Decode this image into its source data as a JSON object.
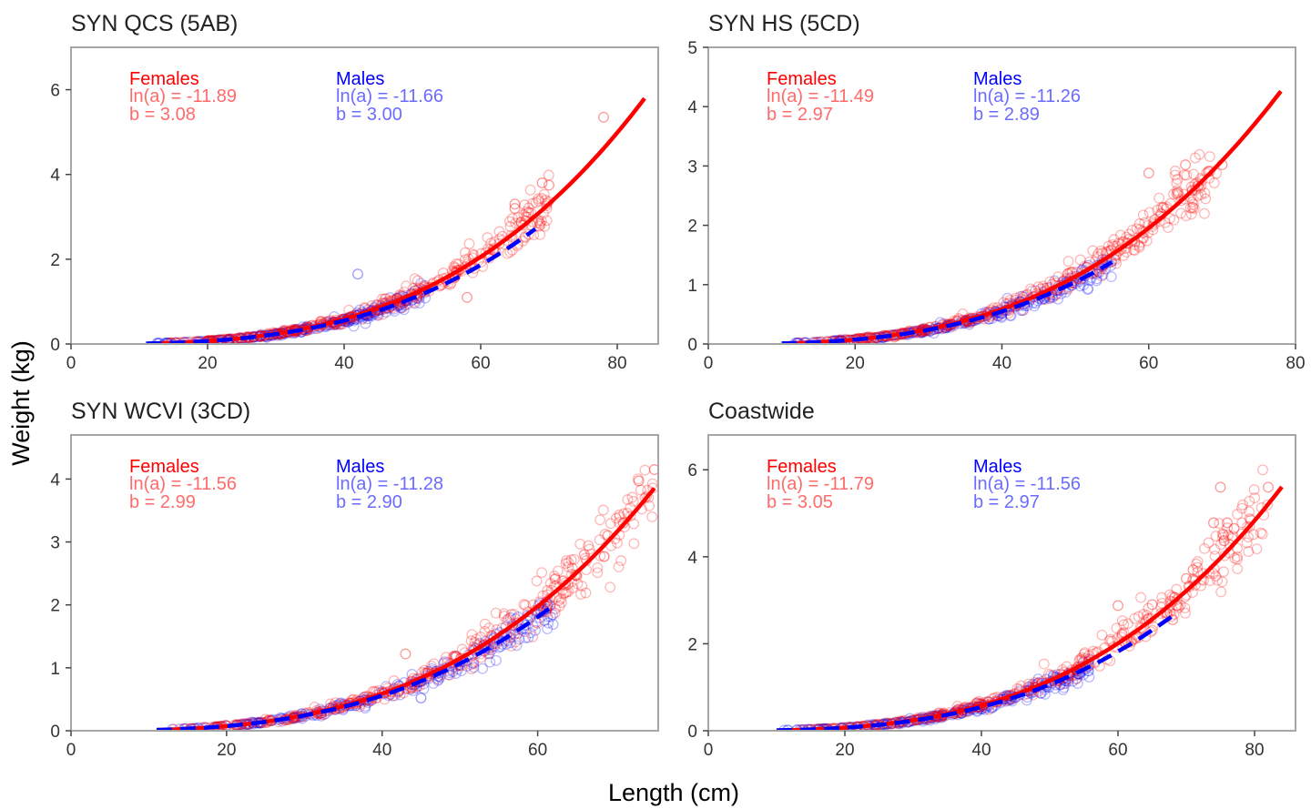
{
  "figure": {
    "ylabel": "Weight (kg)",
    "xlabel": "Length (cm)"
  },
  "colors": {
    "female": "#ff0000",
    "female_text": "#ff6b6b",
    "male": "#0000ff",
    "male_text": "#6b6bff",
    "frame": "#a6a6a6"
  },
  "chart_data": [
    {
      "type": "scatter",
      "title": "SYN QCS (5AB)",
      "xlim": [
        0,
        86
      ],
      "ylim": [
        0,
        7
      ],
      "x_ticks": [
        0,
        20,
        40,
        60,
        80
      ],
      "y_ticks": [
        0,
        2,
        4,
        6
      ],
      "series": [
        {
          "name": "Females",
          "ln_a": "ln(a) = -11.89",
          "b_label": "b = 3.08",
          "lna": -11.89,
          "b": 3.08,
          "x_range": [
            12,
            84
          ],
          "line_style": "solid",
          "scatter_x_range": [
            13,
            70
          ]
        },
        {
          "name": "Males",
          "ln_a": "ln(a) = -11.66",
          "b_label": "b = 3.00",
          "lna": -11.66,
          "b": 3.0,
          "x_range": [
            11,
            68
          ],
          "line_style": "dashed",
          "scatter_x_range": [
            12,
            52
          ]
        }
      ],
      "outliers": [
        {
          "sex": "female",
          "x": 78,
          "y": 5.35
        },
        {
          "sex": "female",
          "x": 69,
          "y": 3.8
        },
        {
          "sex": "female",
          "x": 70,
          "y": 3.75
        },
        {
          "sex": "female",
          "x": 65,
          "y": 3.3
        },
        {
          "sex": "female",
          "x": 65,
          "y": 3.2
        },
        {
          "sex": "female",
          "x": 67,
          "y": 3.1
        },
        {
          "sex": "female",
          "x": 58,
          "y": 1.1
        },
        {
          "sex": "male",
          "x": 42,
          "y": 1.65
        }
      ]
    },
    {
      "type": "scatter",
      "title": "SYN HS (5CD)",
      "xlim": [
        0,
        80
      ],
      "ylim": [
        0,
        5
      ],
      "x_ticks": [
        0,
        20,
        40,
        60,
        80
      ],
      "y_ticks": [
        0,
        1,
        2,
        3,
        4,
        5
      ],
      "series": [
        {
          "name": "Females",
          "ln_a": "ln(a) = -11.49",
          "b_label": "b = 2.97",
          "lna": -11.49,
          "b": 2.97,
          "x_range": [
            10,
            78
          ],
          "line_style": "solid",
          "scatter_x_range": [
            12,
            70
          ]
        },
        {
          "name": "Males",
          "ln_a": "ln(a) = -11.26",
          "b_label": "b = 2.89",
          "lna": -11.26,
          "b": 2.89,
          "x_range": [
            10,
            55
          ],
          "line_style": "dashed",
          "scatter_x_range": [
            11,
            55
          ]
        }
      ],
      "outliers": [
        {
          "sex": "female",
          "x": 60,
          "y": 2.88
        },
        {
          "sex": "female",
          "x": 65,
          "y": 3.02
        },
        {
          "sex": "female",
          "x": 70,
          "y": 3.02
        },
        {
          "sex": "female",
          "x": 66,
          "y": 2.3
        },
        {
          "sex": "female",
          "x": 62,
          "y": 2.3
        },
        {
          "sex": "female",
          "x": 64,
          "y": 2.55
        }
      ]
    },
    {
      "type": "scatter",
      "title": "SYN WCVI (3CD)",
      "xlim": [
        0,
        75.5
      ],
      "ylim": [
        0,
        4.7
      ],
      "x_ticks": [
        0,
        20,
        40,
        60
      ],
      "y_ticks": [
        0,
        1,
        2,
        3,
        4
      ],
      "series": [
        {
          "name": "Females",
          "ln_a": "ln(a) = -11.56",
          "b_label": "b = 2.99",
          "lna": -11.56,
          "b": 2.99,
          "x_range": [
            11,
            75
          ],
          "line_style": "solid",
          "scatter_x_range": [
            13,
            75
          ]
        },
        {
          "name": "Males",
          "ln_a": "ln(a) = -11.28",
          "b_label": "b = 2.90",
          "lna": -11.28,
          "b": 2.9,
          "x_range": [
            11,
            62
          ],
          "line_style": "dashed",
          "scatter_x_range": [
            12,
            62
          ]
        }
      ],
      "outliers": [
        {
          "sex": "female",
          "x": 75,
          "y": 4.15
        },
        {
          "sex": "female",
          "x": 73,
          "y": 3.97
        },
        {
          "sex": "female",
          "x": 71,
          "y": 3.3
        },
        {
          "sex": "female",
          "x": 69,
          "y": 3.1
        },
        {
          "sex": "female",
          "x": 66,
          "y": 2.8
        },
        {
          "sex": "female",
          "x": 43,
          "y": 1.22
        },
        {
          "sex": "male",
          "x": 45,
          "y": 0.52
        }
      ]
    },
    {
      "type": "scatter",
      "title": "Coastwide",
      "xlim": [
        0,
        86
      ],
      "ylim": [
        0,
        6.8
      ],
      "x_ticks": [
        0,
        20,
        40,
        60,
        80
      ],
      "y_ticks": [
        0,
        2,
        4,
        6
      ],
      "series": [
        {
          "name": "Females",
          "ln_a": "ln(a) = -11.79",
          "b_label": "b = 3.05",
          "lna": -11.79,
          "b": 3.05,
          "x_range": [
            10,
            84
          ],
          "line_style": "solid",
          "scatter_x_range": [
            12,
            82
          ]
        },
        {
          "name": "Males",
          "ln_a": "ln(a) = -11.56",
          "b_label": "b = 2.97",
          "lna": -11.56,
          "b": 2.97,
          "x_range": [
            10,
            68
          ],
          "line_style": "dashed",
          "scatter_x_range": [
            11,
            56
          ]
        }
      ],
      "outliers": [
        {
          "sex": "female",
          "x": 82,
          "y": 5.6
        },
        {
          "sex": "female",
          "x": 75,
          "y": 5.6
        },
        {
          "sex": "female",
          "x": 76,
          "y": 4.78
        },
        {
          "sex": "female",
          "x": 74,
          "y": 4.78
        },
        {
          "sex": "female",
          "x": 77,
          "y": 4.65
        },
        {
          "sex": "female",
          "x": 71,
          "y": 3.7
        },
        {
          "sex": "female",
          "x": 70,
          "y": 3.5
        },
        {
          "sex": "female",
          "x": 60,
          "y": 2.88
        },
        {
          "sex": "female",
          "x": 65,
          "y": 2.9
        },
        {
          "sex": "female",
          "x": 68,
          "y": 2.55
        }
      ]
    }
  ]
}
